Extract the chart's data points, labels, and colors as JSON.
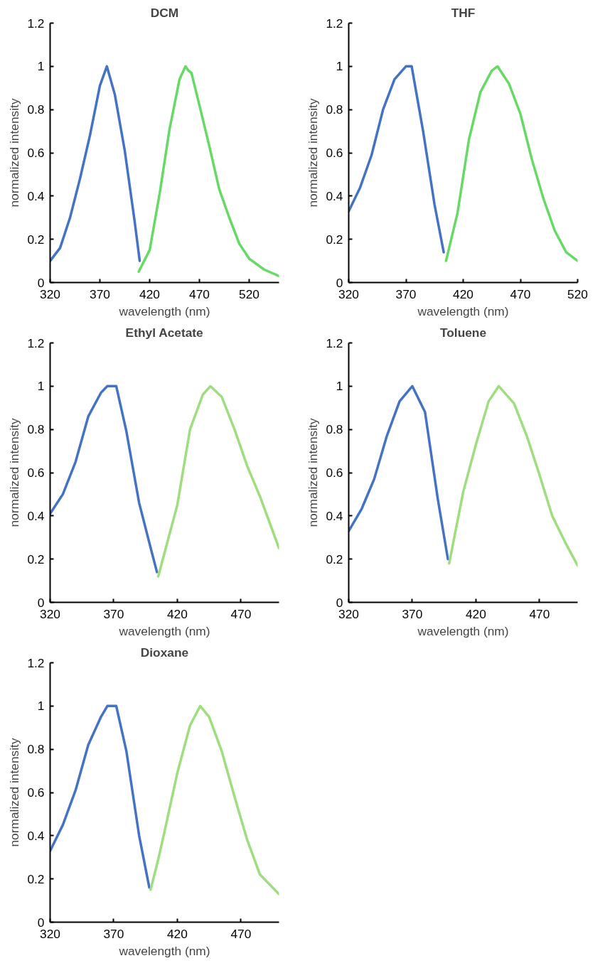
{
  "chart_data": [
    {
      "type": "line",
      "title": "DCM",
      "xlabel": "wavelength (nm)",
      "ylabel": "normalized intensity",
      "xlim": [
        320,
        550
      ],
      "xticks": [
        320,
        370,
        420,
        470,
        520
      ],
      "ylim": [
        0,
        1.2
      ],
      "yticks": [
        0,
        0.2,
        0.4,
        0.6,
        0.8,
        1,
        1.2
      ],
      "series": [
        {
          "color": "#4472c4",
          "x": [
            320,
            330,
            340,
            350,
            360,
            370,
            377,
            385,
            395,
            405,
            410
          ],
          "values": [
            0.1,
            0.16,
            0.3,
            0.48,
            0.68,
            0.91,
            1.0,
            0.87,
            0.61,
            0.28,
            0.1
          ]
        },
        {
          "color": "#66d966",
          "x": [
            409,
            420,
            430,
            440,
            450,
            456,
            459,
            462,
            470,
            480,
            490,
            500,
            510,
            520,
            535,
            550
          ],
          "values": [
            0.05,
            0.15,
            0.41,
            0.71,
            0.94,
            1.0,
            0.98,
            0.97,
            0.82,
            0.63,
            0.43,
            0.3,
            0.18,
            0.11,
            0.06,
            0.03
          ]
        }
      ]
    },
    {
      "type": "line",
      "title": "THF",
      "xlabel": "wavelength (nm)",
      "ylabel": "normalized intensity",
      "xlim": [
        320,
        520
      ],
      "xticks": [
        320,
        370,
        420,
        470,
        520
      ],
      "ylim": [
        0,
        1.2
      ],
      "yticks": [
        0,
        0.2,
        0.4,
        0.6,
        0.8,
        1,
        1.2
      ],
      "series": [
        {
          "color": "#4472c4",
          "x": [
            320,
            330,
            340,
            350,
            360,
            370,
            375,
            385,
            395,
            403
          ],
          "values": [
            0.33,
            0.44,
            0.59,
            0.8,
            0.94,
            1.0,
            1.0,
            0.7,
            0.36,
            0.14
          ]
        },
        {
          "color": "#66d966",
          "x": [
            405,
            415,
            425,
            435,
            445,
            450,
            460,
            470,
            480,
            490,
            500,
            510,
            520
          ],
          "values": [
            0.1,
            0.32,
            0.66,
            0.88,
            0.98,
            1.0,
            0.92,
            0.78,
            0.57,
            0.39,
            0.24,
            0.14,
            0.1
          ]
        }
      ]
    },
    {
      "type": "line",
      "title": "Ethyl Acetate",
      "xlabel": "wavelength (nm)",
      "ylabel": "normalized intensity",
      "xlim": [
        320,
        500
      ],
      "xticks": [
        320,
        370,
        420,
        470
      ],
      "ylim": [
        0,
        1.2
      ],
      "yticks": [
        0,
        0.2,
        0.4,
        0.6,
        0.8,
        1,
        1.2
      ],
      "series": [
        {
          "color": "#4472c4",
          "x": [
            320,
            330,
            340,
            350,
            360,
            365,
            372,
            380,
            390,
            400,
            404
          ],
          "values": [
            0.41,
            0.5,
            0.65,
            0.86,
            0.97,
            1.0,
            1.0,
            0.79,
            0.46,
            0.23,
            0.14
          ]
        },
        {
          "color": "#9ede7e",
          "x": [
            405,
            410,
            420,
            430,
            440,
            446,
            455,
            465,
            475,
            485,
            495,
            500
          ],
          "values": [
            0.12,
            0.23,
            0.45,
            0.8,
            0.96,
            1.0,
            0.95,
            0.8,
            0.63,
            0.49,
            0.33,
            0.25
          ]
        }
      ]
    },
    {
      "type": "line",
      "title": "Toluene",
      "xlabel": "wavelength (nm)",
      "ylabel": "normalized intensity",
      "xlim": [
        320,
        500
      ],
      "xticks": [
        320,
        370,
        420,
        470
      ],
      "ylim": [
        0,
        1.2
      ],
      "yticks": [
        0,
        0.2,
        0.4,
        0.6,
        0.8,
        1,
        1.2
      ],
      "series": [
        {
          "color": "#4472c4",
          "x": [
            320,
            330,
            340,
            350,
            360,
            370,
            380,
            390,
            398
          ],
          "values": [
            0.33,
            0.43,
            0.57,
            0.77,
            0.93,
            1.0,
            0.88,
            0.48,
            0.2
          ]
        },
        {
          "color": "#9ede7e",
          "x": [
            399,
            410,
            420,
            430,
            438,
            450,
            460,
            470,
            480,
            490,
            500
          ],
          "values": [
            0.18,
            0.51,
            0.73,
            0.93,
            1.0,
            0.92,
            0.77,
            0.59,
            0.4,
            0.28,
            0.17
          ]
        }
      ]
    },
    {
      "type": "line",
      "title": "Dioxane",
      "xlabel": "wavelength (nm)",
      "ylabel": "normalized intensity",
      "xlim": [
        320,
        500
      ],
      "xticks": [
        320,
        370,
        420,
        470
      ],
      "ylim": [
        0,
        1.2
      ],
      "yticks": [
        0,
        0.2,
        0.4,
        0.6,
        0.8,
        1,
        1.2
      ],
      "series": [
        {
          "color": "#4472c4",
          "x": [
            320,
            330,
            340,
            350,
            360,
            365,
            372,
            380,
            390,
            398
          ],
          "values": [
            0.33,
            0.45,
            0.61,
            0.82,
            0.95,
            1.0,
            1.0,
            0.79,
            0.4,
            0.16
          ]
        },
        {
          "color": "#9ede7e",
          "x": [
            399,
            405,
            410,
            420,
            430,
            438,
            445,
            455,
            465,
            475,
            485,
            500
          ],
          "values": [
            0.15,
            0.29,
            0.42,
            0.69,
            0.91,
            1.0,
            0.95,
            0.79,
            0.58,
            0.38,
            0.22,
            0.13
          ]
        }
      ]
    }
  ]
}
